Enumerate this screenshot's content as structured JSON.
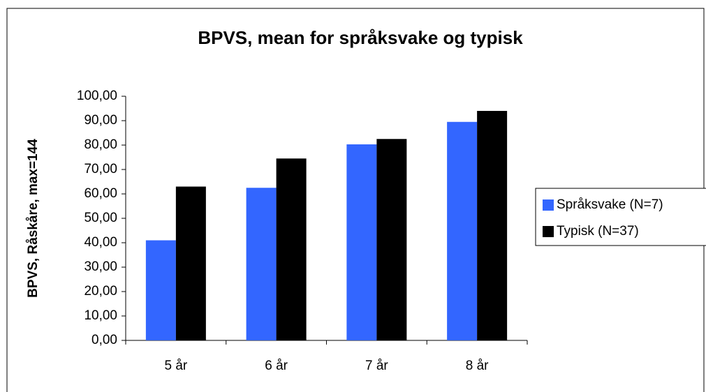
{
  "chart_data": {
    "type": "bar",
    "title": "BPVS, mean for språksvake og typisk",
    "y_label": "BPVS, Råskåre, max=144",
    "categories": [
      "5 år",
      "6 år",
      "7 år",
      "8 år"
    ],
    "series": [
      {
        "name": "Språksvake (N=7)",
        "color": "#3366ff",
        "values": [
          41,
          62.5,
          80.3,
          89.5
        ]
      },
      {
        "name": "Typisk (N=37)",
        "color": "#000000",
        "values": [
          63,
          74.5,
          82.5,
          94
        ]
      }
    ],
    "ylim": [
      0,
      100
    ],
    "yticks": [
      {
        "value": 0,
        "label": "0,00"
      },
      {
        "value": 10,
        "label": "10,00"
      },
      {
        "value": 20,
        "label": "20,00"
      },
      {
        "value": 30,
        "label": "30,00"
      },
      {
        "value": 40,
        "label": "40,00"
      },
      {
        "value": 50,
        "label": "50,00"
      },
      {
        "value": 60,
        "label": "60,00"
      },
      {
        "value": 70,
        "label": "70,00"
      },
      {
        "value": 80,
        "label": "80,00"
      },
      {
        "value": 90,
        "label": "90,00"
      },
      {
        "value": 100,
        "label": "100,00"
      }
    ],
    "legend": "right"
  }
}
